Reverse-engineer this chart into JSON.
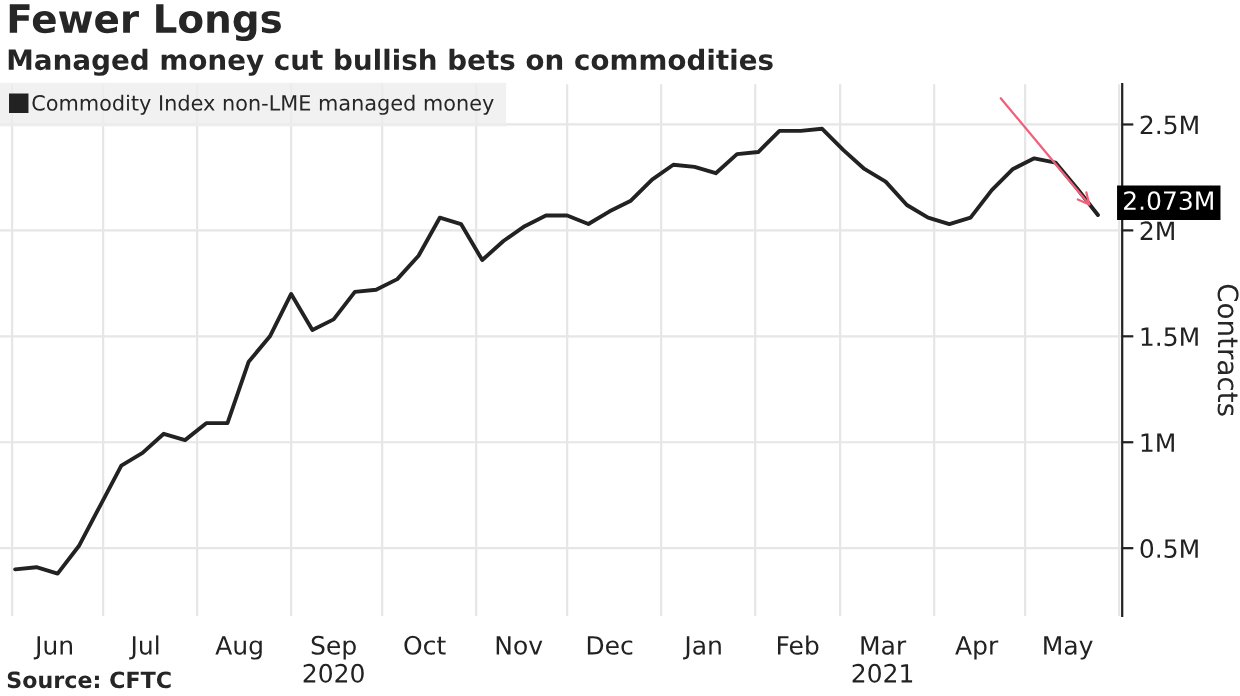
{
  "chart_data": {
    "type": "line",
    "title": "Fewer Longs",
    "subtitle": "Managed money cut bullish bets on commodities",
    "ylabel": "Contracts",
    "x": [
      "2020-06-02",
      "2020-06-09",
      "2020-06-16",
      "2020-06-23",
      "2020-06-30",
      "2020-07-07",
      "2020-07-14",
      "2020-07-21",
      "2020-07-28",
      "2020-08-04",
      "2020-08-11",
      "2020-08-18",
      "2020-08-25",
      "2020-09-01",
      "2020-09-08",
      "2020-09-15",
      "2020-09-22",
      "2020-09-29",
      "2020-10-06",
      "2020-10-13",
      "2020-10-20",
      "2020-10-27",
      "2020-11-03",
      "2020-11-10",
      "2020-11-17",
      "2020-11-24",
      "2020-12-01",
      "2020-12-08",
      "2020-12-15",
      "2020-12-22",
      "2020-12-29",
      "2021-01-05",
      "2021-01-12",
      "2021-01-19",
      "2021-01-26",
      "2021-02-02",
      "2021-02-09",
      "2021-02-16",
      "2021-02-23",
      "2021-03-02",
      "2021-03-09",
      "2021-03-16",
      "2021-03-23",
      "2021-03-30",
      "2021-04-06",
      "2021-04-13",
      "2021-04-20",
      "2021-04-27",
      "2021-05-04",
      "2021-05-11",
      "2021-05-18",
      "2021-05-25"
    ],
    "series": [
      {
        "name": "Commodity Index non-LME managed money",
        "color": "#222222",
        "values": [
          0.4,
          0.41,
          0.38,
          0.51,
          0.7,
          0.89,
          0.95,
          1.04,
          1.01,
          1.09,
          1.09,
          1.38,
          1.5,
          1.7,
          1.53,
          1.58,
          1.71,
          1.72,
          1.77,
          1.88,
          2.06,
          2.03,
          1.86,
          1.95,
          2.02,
          2.07,
          2.07,
          2.03,
          2.09,
          2.14,
          2.24,
          2.31,
          2.3,
          2.27,
          2.36,
          2.37,
          2.47,
          2.47,
          2.48,
          2.38,
          2.29,
          2.23,
          2.12,
          2.06,
          2.03,
          2.06,
          2.19,
          2.29,
          2.34,
          2.32,
          2.2,
          2.073
        ]
      }
    ],
    "xlim": [
      "2020-05-28",
      "2021-06-02"
    ],
    "xticks": [
      {
        "value": "2020-06-01",
        "label": null
      },
      {
        "value": "2020-06-15",
        "label": "Jun"
      },
      {
        "value": "2020-07-01",
        "label": null
      },
      {
        "value": "2020-07-15",
        "label": "Jul"
      },
      {
        "value": "2020-08-01",
        "label": null
      },
      {
        "value": "2020-08-15",
        "label": "Aug"
      },
      {
        "value": "2020-09-01",
        "label": null
      },
      {
        "value": "2020-09-15",
        "label": "Sep\n2020"
      },
      {
        "value": "2020-10-01",
        "label": null
      },
      {
        "value": "2020-10-15",
        "label": "Oct"
      },
      {
        "value": "2020-11-01",
        "label": null
      },
      {
        "value": "2020-11-15",
        "label": "Nov"
      },
      {
        "value": "2020-12-01",
        "label": null
      },
      {
        "value": "2020-12-15",
        "label": "Dec"
      },
      {
        "value": "2021-01-01",
        "label": null
      },
      {
        "value": "2021-01-15",
        "label": "Jan"
      },
      {
        "value": "2021-02-01",
        "label": null
      },
      {
        "value": "2021-02-15",
        "label": "Feb"
      },
      {
        "value": "2021-03-01",
        "label": null
      },
      {
        "value": "2021-03-15",
        "label": "Mar\n2021"
      },
      {
        "value": "2021-04-01",
        "label": null
      },
      {
        "value": "2021-04-15",
        "label": "Apr"
      },
      {
        "value": "2021-05-01",
        "label": null
      },
      {
        "value": "2021-05-15",
        "label": "May"
      },
      {
        "value": "2021-06-01",
        "label": null
      }
    ],
    "ylim": [
      0.18,
      2.69
    ],
    "yticks": [
      {
        "value": 0.5,
        "label": "0.5M"
      },
      {
        "value": 1,
        "label": "1M"
      },
      {
        "value": 1.5,
        "label": "1.5M"
      },
      {
        "value": 2,
        "label": "2M"
      },
      {
        "value": 2.5,
        "label": "2.5M"
      }
    ],
    "annotations": [
      {
        "text": "2.073M",
        "x": "2021-05-25",
        "y": 2.073
      },
      "Source: CFTC"
    ],
    "grid": true,
    "legend": "top left",
    "marker": "none",
    "line_style": "solid"
  }
}
